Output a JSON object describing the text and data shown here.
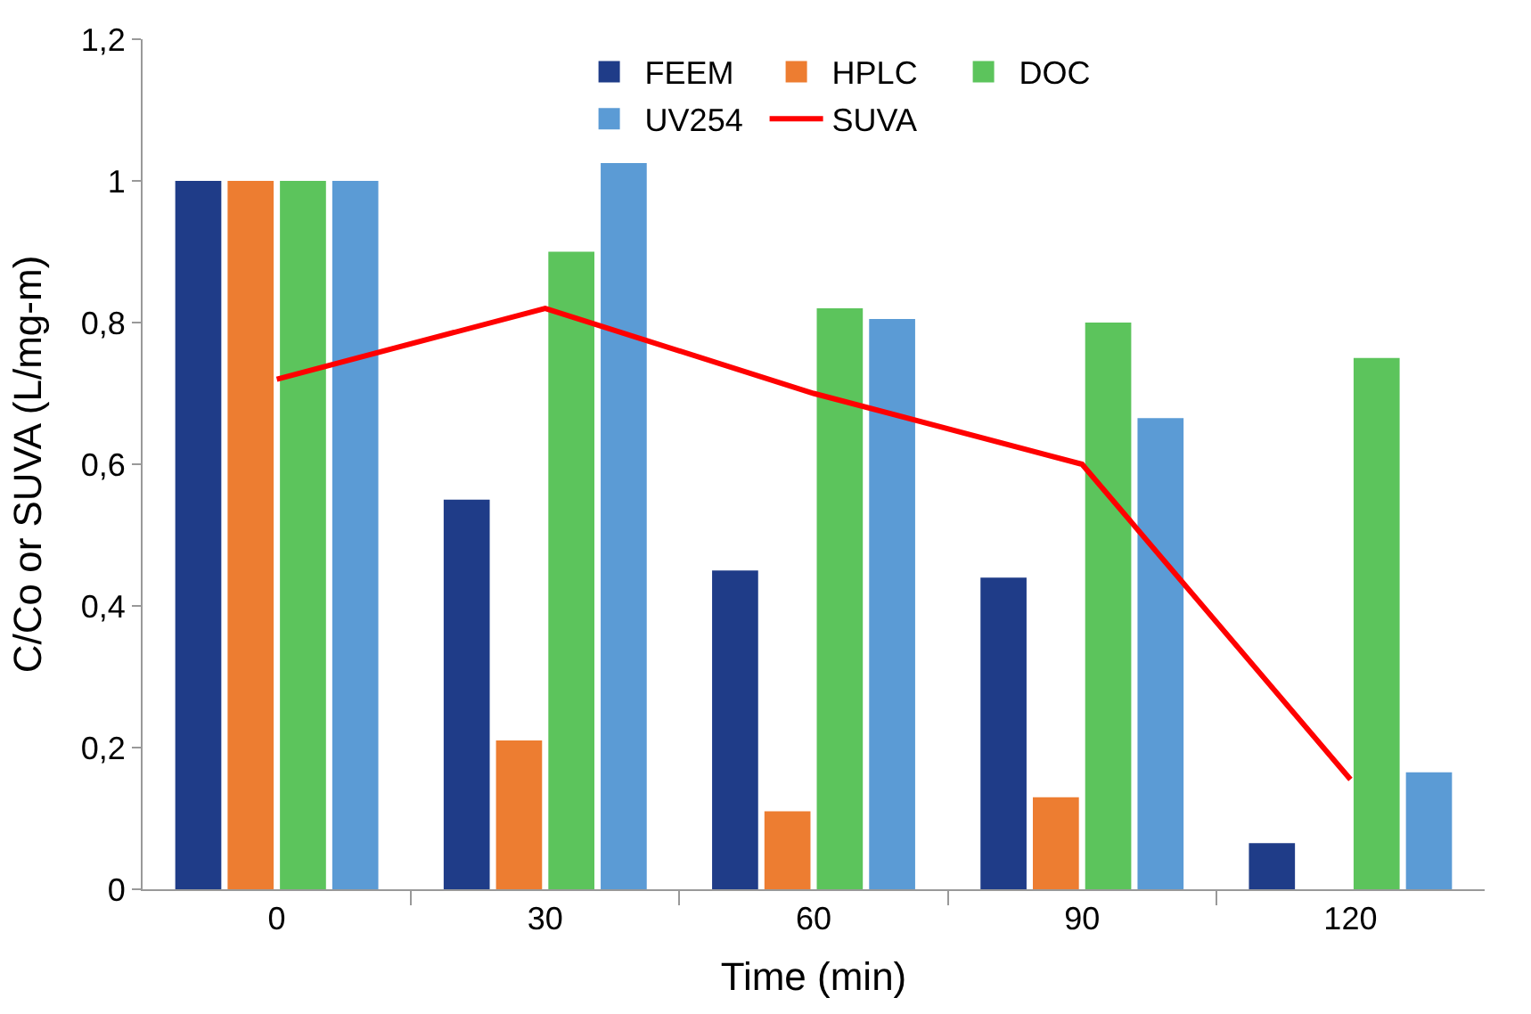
{
  "chart_data": {
    "type": "bar",
    "xlabel": "Time (min)",
    "ylabel": "C/Co or SUVA (L/mg-m)",
    "categories": [
      "0",
      "30",
      "60",
      "90",
      "120"
    ],
    "series": [
      {
        "name": "FEEM",
        "color": "#1f3c88",
        "values": [
          1.0,
          0.55,
          0.45,
          0.44,
          0.065
        ]
      },
      {
        "name": "HPLC",
        "color": "#ed7d31",
        "values": [
          1.0,
          0.21,
          0.11,
          0.13,
          null
        ]
      },
      {
        "name": "DOC",
        "color": "#5cc45c",
        "values": [
          1.0,
          0.9,
          0.82,
          0.8,
          0.75
        ]
      },
      {
        "name": "UV254",
        "color": "#5b9bd5",
        "values": [
          1.0,
          1.025,
          0.805,
          0.665,
          0.165
        ]
      },
      {
        "name": "SUVA",
        "color": "#ff0000",
        "type": "line",
        "values": [
          0.72,
          0.82,
          0.7,
          0.6,
          0.155
        ]
      }
    ],
    "ylim": [
      0,
      1.2
    ],
    "yticks": [
      0,
      {
        "value": 0.2,
        "label": "0,2"
      },
      {
        "value": 0.4,
        "label": "0,4"
      },
      {
        "value": 0.6,
        "label": "0,6"
      },
      {
        "value": 0.8,
        "label": "0,8"
      },
      1,
      {
        "value": 1.2,
        "label": "1,2"
      }
    ],
    "grid": false,
    "legend": "top right",
    "marker": "none",
    "line_style": "solid"
  }
}
